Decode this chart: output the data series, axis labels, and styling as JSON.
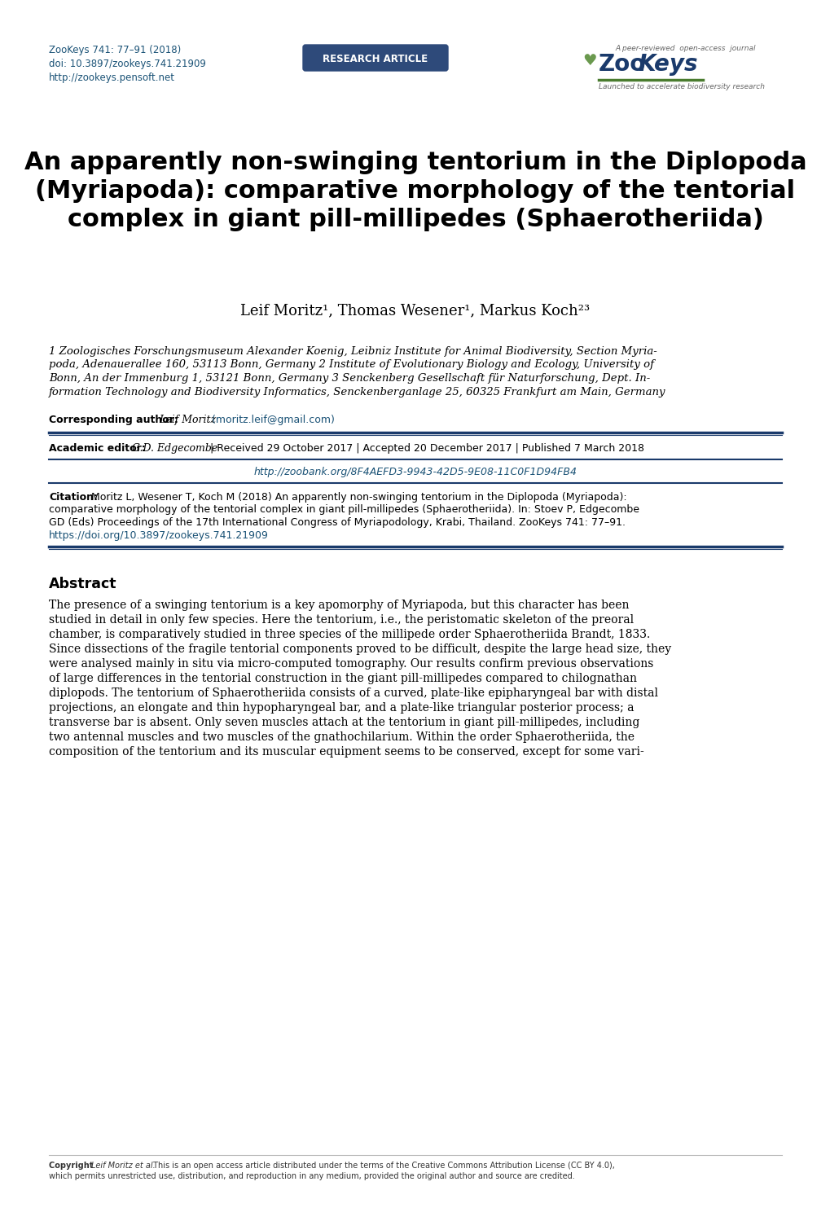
{
  "journal_info": "ZooKeys 741: 77–91 (2018)",
  "doi": "doi: 10.3897/zookeys.741.21909",
  "url": "http://zookeys.pensoft.net",
  "research_article_label": "RESEARCH ARTICLE",
  "title": "An apparently non-swinging tentorium in the Diplopoda\n(Myriapoda): comparative morphology of the tentorial\ncomplex in giant pill-millipedes (Sphaerotheriida)",
  "authors": "Leif Moritz¹, Thomas Wesener¹, Markus Koch²³",
  "aff_lines": [
    "1 Zoologisches Forschungsmuseum Alexander Koenig, Leibniz Institute for Animal Biodiversity, Section Myria-",
    "poda, Adenauerallee 160, 53113 Bonn, Germany 2 Institute of Evolutionary Biology and Ecology, University of",
    "Bonn, An der Immenburg 1, 53121 Bonn, Germany 3 Senckenberg Gesellschaft für Naturforschung, Dept. In-",
    "formation Technology and Biodiversity Informatics, Senckenberganlage 25, 60325 Frankfurt am Main, Germany"
  ],
  "corresponding_label": "Corresponding author: ",
  "corresponding_name": "Leif Moritz",
  "corresponding_email": " (moritz.leif@gmail.com)",
  "academic_editor_label": "Academic editor: ",
  "academic_editor_name": "G.D. Edgecombe",
  "academic_editor_dates": " | Received 29 October 2017 | Accepted 20 December 2017 | Published 7 March 2018",
  "zoobank_url": "http://zoobank.org/8F4AEFD3-9943-42D5-9E08-11C0F1D94FB4",
  "citation_label": "Citation:",
  "citation_lines": [
    "Moritz L, Wesener T, Koch M (2018) An apparently non-swinging tentorium in the Diplopoda (Myriapoda):",
    "comparative morphology of the tentorial complex in giant pill-millipedes (Sphaerotheriida). In: Stoev P, Edgecombe",
    "GD (Eds) Proceedings of the 17th International Congress of Myriapodology, Krabi, Thailand. ZooKeys 741: 77–91."
  ],
  "citation_url": "https://doi.org/10.3897/zookeys.741.21909",
  "abstract_title": "Abstract",
  "abstract_lines": [
    "The presence of a swinging tentorium is a key apomorphy of Myriapoda, but this character has been",
    "studied in detail in only few species. Here the tentorium, i.e., the peristomatic skeleton of the preoral",
    "chamber, is comparatively studied in three species of the millipede order Sphaerotheriida Brandt, 1833.",
    "Since dissections of the fragile tentorial components proved to be difficult, despite the large head size, they",
    "were analysed mainly in situ via micro-computed tomography. Our results confirm previous observations",
    "of large differences in the tentorial construction in the giant pill-millipedes compared to chilognathan",
    "diplopods. The tentorium of Sphaerotheriida consists of a curved, plate-like epipharyngeal bar with distal",
    "projections, an elongate and thin hypopharyngeal bar, and a plate-like triangular posterior process; a",
    "transverse bar is absent. Only seven muscles attach at the tentorium in giant pill-millipedes, including",
    "two antennal muscles and two muscles of the gnathochilarium. Within the order Sphaerotheriida, the",
    "composition of the tentorium and its muscular equipment seems to be conserved, except for some vari-"
  ],
  "copyright_bold": "Copyright ",
  "copyright_italic": "Leif Moritz et al.",
  "copyright_normal": " This is an open access article distributed under the terms of the Creative Commons Attribution License (CC BY 4.0), which permits unrestricted use, distribution, and reproduction in any medium, provided the original author and source are credited.",
  "link_color": "#1a5276",
  "dark_blue": "#1a3a6b",
  "button_color": "#2e4a7a",
  "background_color": "#ffffff",
  "zookeys_blue": "#1a3a6b",
  "zookeys_green": "#4a7c2f"
}
